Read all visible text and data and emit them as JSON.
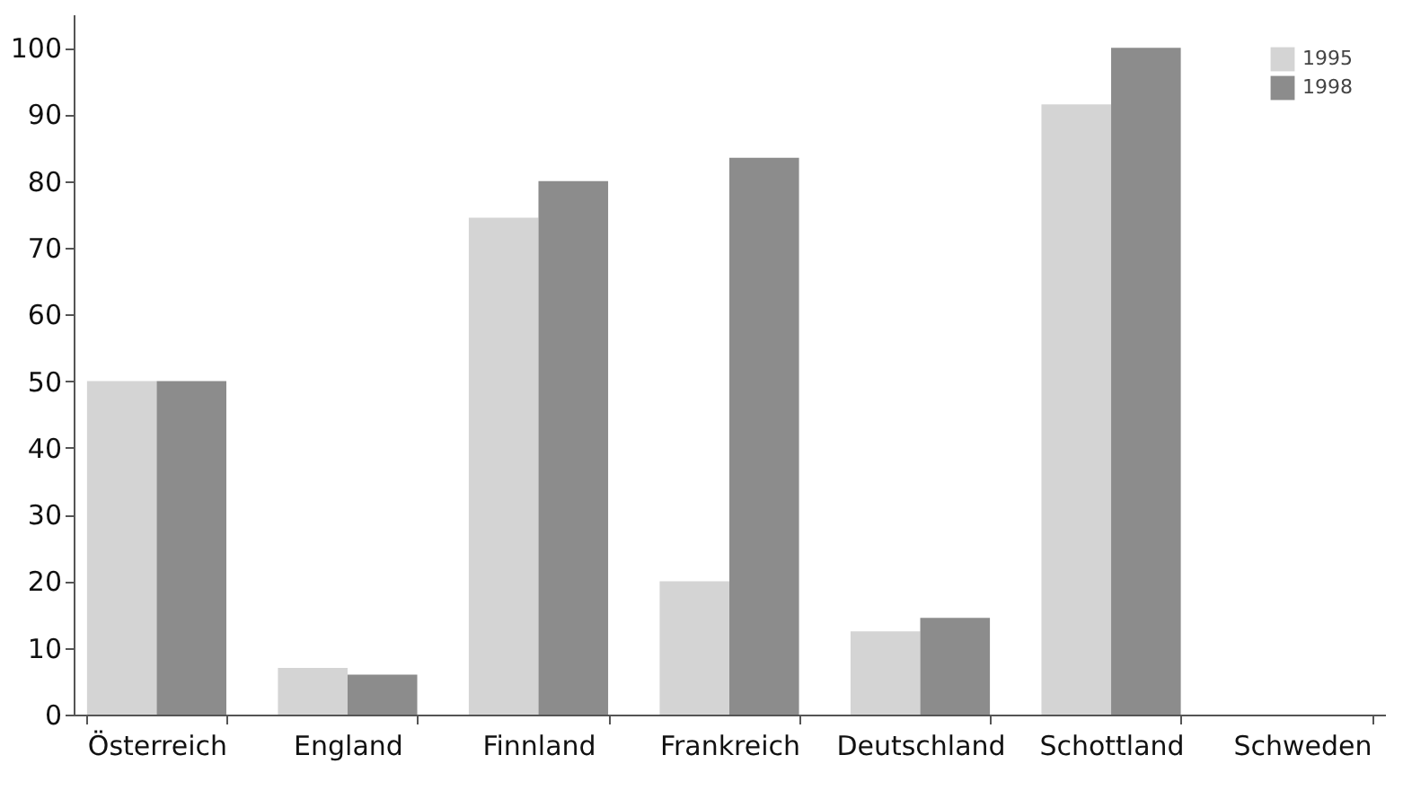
{
  "chart_data": {
    "type": "bar",
    "categories": [
      "Österreich",
      "England",
      "Finnland",
      "Frankreich",
      "Deutschland",
      "Schottland",
      "Schweden"
    ],
    "series": [
      {
        "name": "1995",
        "color": "#d4d4d4",
        "values": [
          50,
          7,
          74.5,
          20,
          12.5,
          91.5,
          null
        ]
      },
      {
        "name": "1998",
        "color": "#8c8c8c",
        "values": [
          50,
          6,
          80,
          83.5,
          14.5,
          100,
          null
        ]
      }
    ],
    "ylim": [
      0,
      105
    ],
    "yticks": [
      0,
      10,
      20,
      30,
      40,
      50,
      60,
      70,
      80,
      90,
      100
    ],
    "grid": false,
    "legend": "top right"
  }
}
